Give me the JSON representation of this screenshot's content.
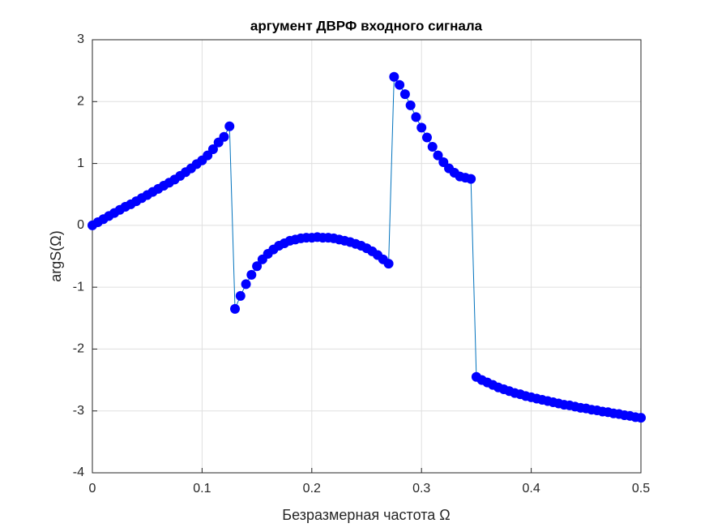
{
  "chart_data": {
    "type": "line",
    "title": "аргумент ДВРФ входного сигнала",
    "xlabel": "Безразмерная частота Ω",
    "ylabel": "argS(Ω)",
    "x": [
      0,
      0.005,
      0.01,
      0.015,
      0.02,
      0.025,
      0.03,
      0.035,
      0.04,
      0.045,
      0.05,
      0.055,
      0.06,
      0.065,
      0.07,
      0.075,
      0.08,
      0.085,
      0.09,
      0.095,
      0.1,
      0.105,
      0.11,
      0.115,
      0.12,
      0.125,
      0.13,
      0.135,
      0.14,
      0.145,
      0.15,
      0.155,
      0.16,
      0.165,
      0.17,
      0.175,
      0.18,
      0.185,
      0.19,
      0.195,
      0.2,
      0.205,
      0.21,
      0.215,
      0.22,
      0.225,
      0.23,
      0.235,
      0.24,
      0.245,
      0.25,
      0.255,
      0.26,
      0.265,
      0.27,
      0.275,
      0.28,
      0.285,
      0.29,
      0.295,
      0.3,
      0.305,
      0.31,
      0.315,
      0.32,
      0.325,
      0.33,
      0.335,
      0.34,
      0.345,
      0.35,
      0.355,
      0.36,
      0.365,
      0.37,
      0.375,
      0.38,
      0.385,
      0.39,
      0.395,
      0.4,
      0.405,
      0.41,
      0.415,
      0.42,
      0.425,
      0.43,
      0.435,
      0.44,
      0.445,
      0.45,
      0.455,
      0.46,
      0.465,
      0.47,
      0.475,
      0.48,
      0.485,
      0.49,
      0.495,
      0.5
    ],
    "values": [
      0,
      0.05,
      0.1,
      0.15,
      0.2,
      0.25,
      0.3,
      0.34,
      0.39,
      0.44,
      0.49,
      0.54,
      0.59,
      0.64,
      0.69,
      0.74,
      0.8,
      0.86,
      0.92,
      0.99,
      1.05,
      1.13,
      1.23,
      1.34,
      1.43,
      1.6,
      -1.35,
      -1.14,
      -0.95,
      -0.8,
      -0.66,
      -0.55,
      -0.46,
      -0.39,
      -0.33,
      -0.29,
      -0.25,
      -0.23,
      -0.21,
      -0.2,
      -0.2,
      -0.19,
      -0.2,
      -0.2,
      -0.21,
      -0.23,
      -0.25,
      -0.27,
      -0.3,
      -0.33,
      -0.37,
      -0.42,
      -0.48,
      -0.55,
      -0.62,
      2.4,
      2.27,
      2.12,
      1.94,
      1.75,
      1.58,
      1.42,
      1.27,
      1.13,
      1.02,
      0.92,
      0.85,
      0.79,
      0.77,
      0.75,
      -2.45,
      -2.5,
      -2.54,
      -2.58,
      -2.62,
      -2.65,
      -2.68,
      -2.71,
      -2.73,
      -2.76,
      -2.78,
      -2.8,
      -2.82,
      -2.84,
      -2.86,
      -2.88,
      -2.9,
      -2.91,
      -2.93,
      -2.95,
      -2.96,
      -2.98,
      -2.99,
      -3.01,
      -3.02,
      -3.04,
      -3.05,
      -3.07,
      -3.08,
      -3.1,
      -3.11
    ],
    "line_color": "#0072bd",
    "marker_color": "#0000ff",
    "xlim": [
      0,
      0.5
    ],
    "xticks": [
      0,
      0.1,
      0.2,
      0.3,
      0.4,
      0.5
    ],
    "ylim": [
      -4,
      3
    ],
    "yticks": [
      -4,
      -3,
      -2,
      -1,
      0,
      1,
      2,
      3
    ],
    "grid": true
  }
}
